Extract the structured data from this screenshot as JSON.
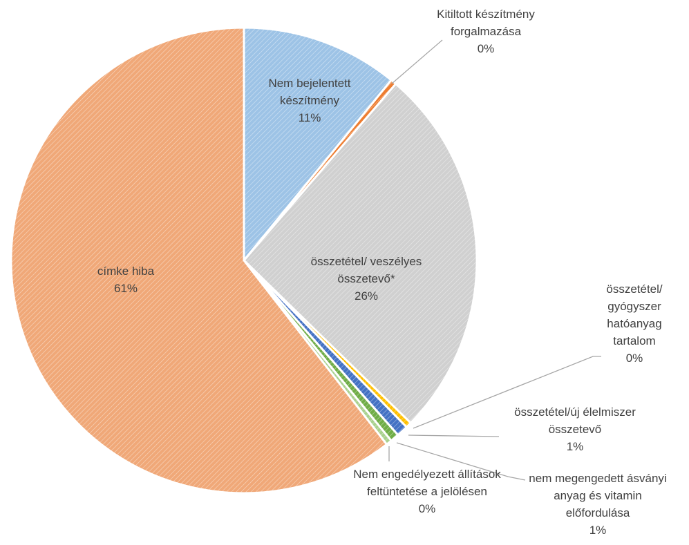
{
  "chart_data": {
    "type": "pie",
    "categories": [
      "Nem bejelentett készítmény",
      "Kitiltott készítmény forgalmazása",
      "összetétel/ veszélyes összetevő*",
      "összetétel/ gyógyszer hatóanyag tartalom",
      "összetétel/új élelmiszer összetevő",
      "nem megengedett ásványi anyag és vitamin előfordulása",
      "Nem engedélyezett állítások feltüntetése a jelölésen",
      "címke hiba"
    ],
    "values": [
      10.9,
      0.4,
      26.0,
      0.4,
      0.8,
      0.6,
      0.4,
      60.5
    ],
    "value_labels": [
      "11%",
      "0%",
      "26%",
      "0%",
      "1%",
      "1%",
      "0%",
      "61%"
    ],
    "colors": [
      "#9dc3e6",
      "#ed7d31",
      "#d0d0d0",
      "#ffc000",
      "#4472c4",
      "#70ad47",
      "#a9d18e",
      "#f0a878"
    ]
  }
}
